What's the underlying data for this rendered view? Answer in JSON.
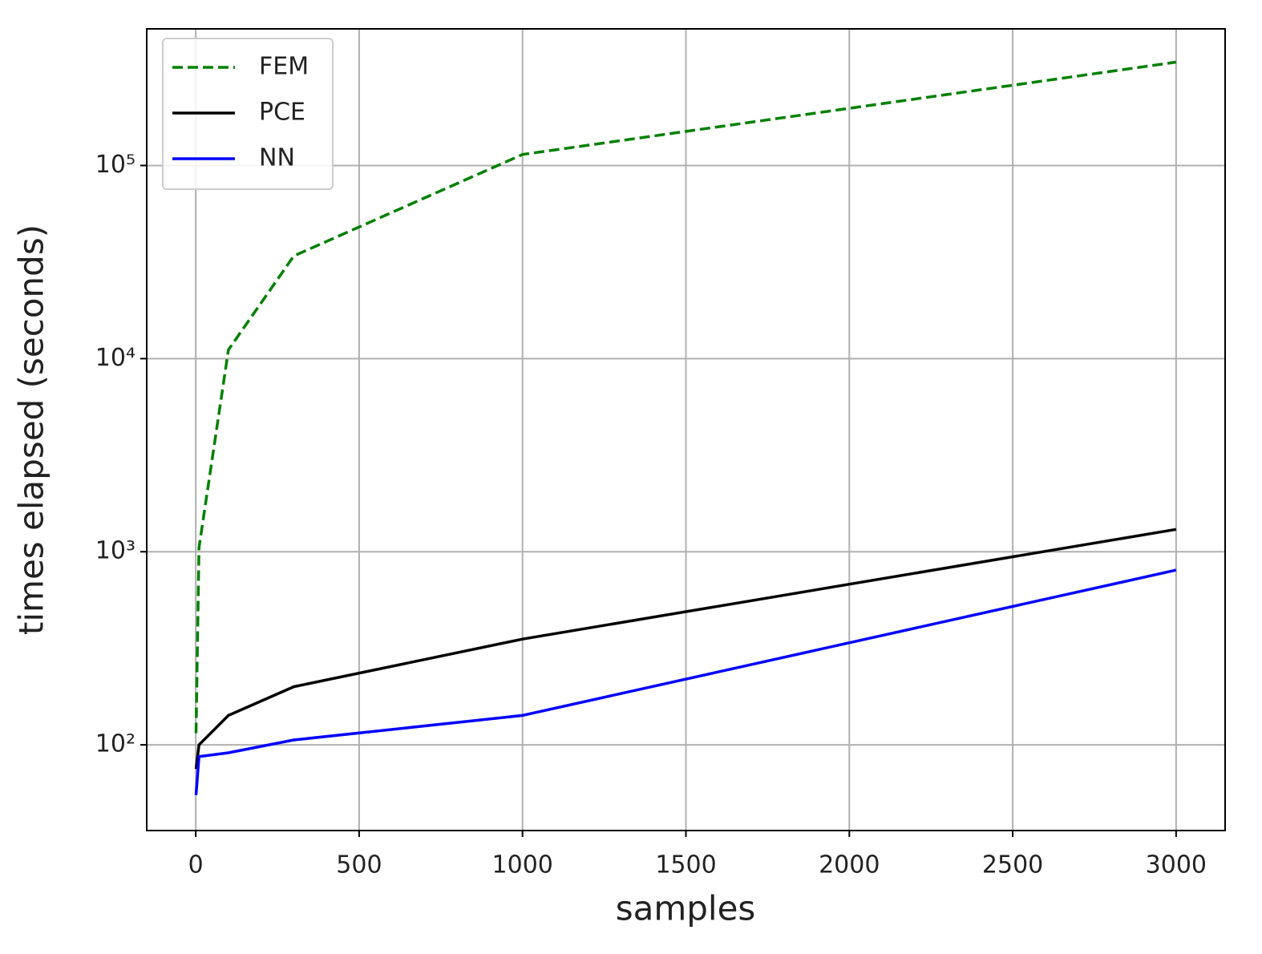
{
  "chart_data": {
    "type": "line",
    "x_label": "samples",
    "y_label": "times elapsed (seconds)",
    "x": [
      1,
      10,
      100,
      300,
      1000,
      3000
    ],
    "series": [
      {
        "name": "FEM",
        "color": "#008000",
        "linestyle": "dashed",
        "values": [
          115,
          1050,
          11100,
          34000,
          114000,
          343000
        ]
      },
      {
        "name": "PCE",
        "color": "#000000",
        "linestyle": "solid",
        "values": [
          75,
          100,
          142,
          200,
          353,
          1306
        ]
      },
      {
        "name": "NN",
        "color": "#0000ff",
        "linestyle": "solid",
        "values": [
          55,
          87,
          91,
          106,
          142,
          804
        ]
      }
    ],
    "xlim": [
      -150,
      3150
    ],
    "xticks": [
      0,
      500,
      1000,
      1500,
      2000,
      2500,
      3000
    ],
    "ylim": [
      36,
      510000
    ],
    "yscale": "log",
    "yticks": [
      {
        "value": 100,
        "label": "10²"
      },
      {
        "value": 1000,
        "label": "10³"
      },
      {
        "value": 10000,
        "label": "10⁴"
      },
      {
        "value": 100000,
        "label": "10⁵"
      }
    ],
    "grid": true,
    "legend_position": "upper-left"
  }
}
